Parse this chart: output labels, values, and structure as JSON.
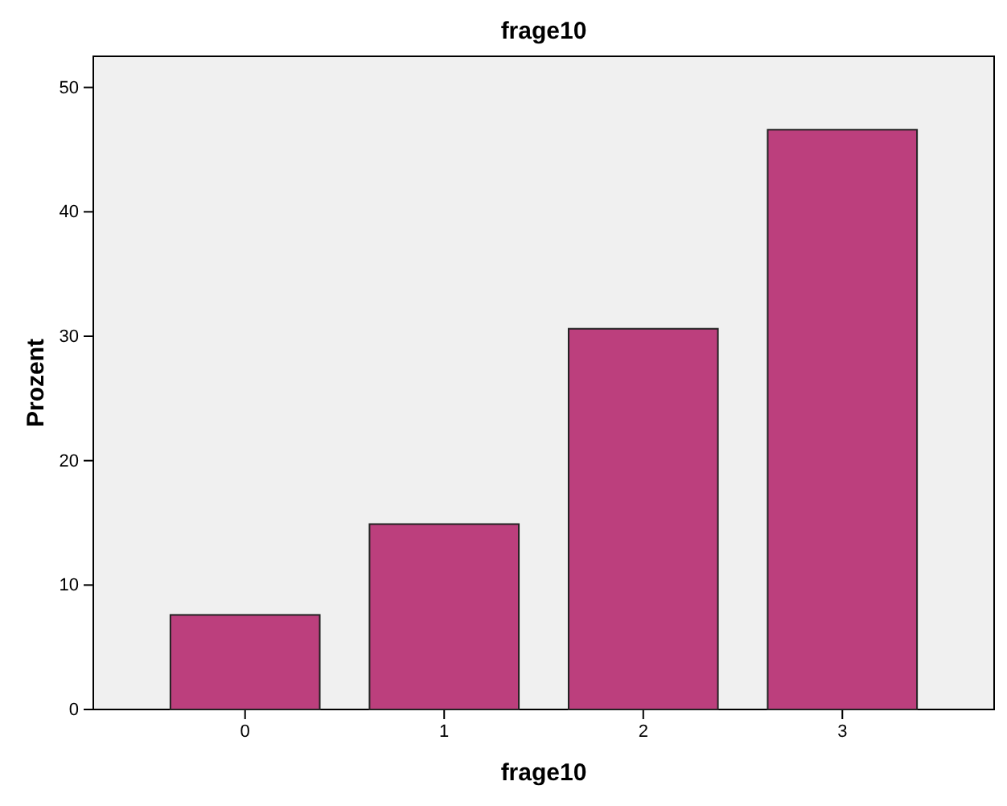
{
  "chart_data": {
    "type": "bar",
    "title": "frage10",
    "xlabel": "frage10",
    "ylabel": "Prozent",
    "categories": [
      "0",
      "1",
      "2",
      "3"
    ],
    "values": [
      7.6,
      14.9,
      30.6,
      46.6
    ],
    "color": "#bc3f7d",
    "ylim": [
      0,
      52.5
    ],
    "yticks": [
      0,
      10,
      20,
      30,
      40,
      50
    ],
    "grid": false
  }
}
